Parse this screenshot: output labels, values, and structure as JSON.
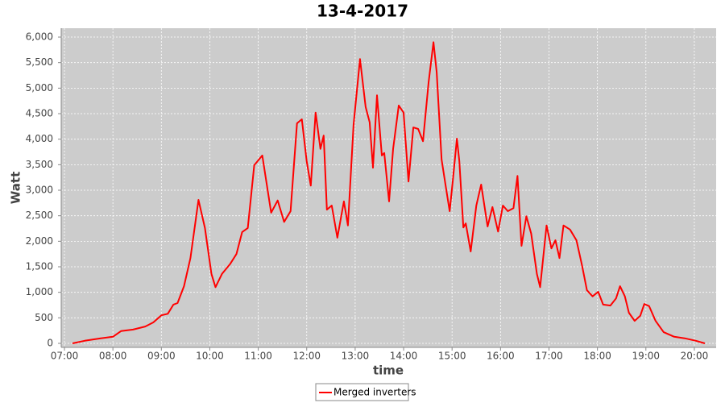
{
  "chart_data": {
    "type": "line",
    "title": "13-4-2017",
    "x_label": "time",
    "y_label": "Watt",
    "x": [
      "07:10",
      "07:25",
      "07:45",
      "08:00",
      "08:10",
      "08:25",
      "08:40",
      "08:50",
      "09:00",
      "09:08",
      "09:15",
      "09:20",
      "09:28",
      "09:36",
      "09:46",
      "09:54",
      "10:02",
      "10:07",
      "10:15",
      "10:25",
      "10:33",
      "10:40",
      "10:47",
      "10:55",
      "11:05",
      "11:10",
      "11:16",
      "11:24",
      "11:32",
      "11:40",
      "11:48",
      "11:54",
      "12:00",
      "12:05",
      "12:11",
      "12:17",
      "12:21",
      "12:25",
      "12:31",
      "12:38",
      "12:46",
      "12:51",
      "12:58",
      "13:06",
      "13:13",
      "13:18",
      "13:22",
      "13:27",
      "13:33",
      "13:36",
      "13:42",
      "13:47",
      "13:54",
      "14:00",
      "14:06",
      "14:12",
      "14:18",
      "14:24",
      "14:31",
      "14:37",
      "14:41",
      "14:47",
      "14:52",
      "14:57",
      "15:01",
      "15:06",
      "15:09",
      "15:14",
      "15:17",
      "15:23",
      "15:30",
      "15:36",
      "15:44",
      "15:50",
      "15:57",
      "16:03",
      "16:09",
      "16:16",
      "16:21",
      "16:26",
      "16:32",
      "16:38",
      "16:45",
      "16:49",
      "16:57",
      "17:03",
      "17:08",
      "17:13",
      "17:18",
      "17:26",
      "17:34",
      "17:41",
      "17:47",
      "17:54",
      "18:01",
      "18:07",
      "18:16",
      "18:23",
      "18:28",
      "18:34",
      "18:39",
      "18:46",
      "18:53",
      "18:58",
      "19:04",
      "19:12",
      "19:22",
      "19:35",
      "19:48",
      "20:02",
      "20:13"
    ],
    "series": [
      {
        "name": "Merged inverters",
        "color": "#ff0000",
        "values": [
          0,
          50,
          100,
          130,
          240,
          270,
          330,
          410,
          550,
          580,
          760,
          790,
          1120,
          1670,
          2810,
          2260,
          1360,
          1100,
          1360,
          1550,
          1750,
          2180,
          2260,
          3490,
          3680,
          3170,
          2560,
          2800,
          2380,
          2590,
          4310,
          4390,
          3570,
          3090,
          4520,
          3810,
          4070,
          2620,
          2700,
          2070,
          2780,
          2310,
          4280,
          5570,
          4630,
          4330,
          3440,
          4860,
          3680,
          3730,
          2780,
          3810,
          4660,
          4520,
          3170,
          4230,
          4200,
          3960,
          5120,
          5900,
          5310,
          3600,
          3090,
          2590,
          3200,
          4010,
          3570,
          2270,
          2350,
          1800,
          2700,
          3110,
          2290,
          2670,
          2190,
          2700,
          2590,
          2650,
          3280,
          1910,
          2490,
          2150,
          1360,
          1100,
          2310,
          1860,
          2020,
          1670,
          2310,
          2230,
          2020,
          1520,
          1040,
          920,
          1010,
          760,
          740,
          880,
          1120,
          920,
          600,
          440,
          540,
          770,
          730,
          440,
          220,
          130,
          100,
          50,
          0
        ]
      }
    ],
    "xlim": [
      "06:56",
      "20:27"
    ],
    "xticks": [
      "07:00",
      "08:00",
      "09:00",
      "10:00",
      "11:00",
      "12:00",
      "13:00",
      "14:00",
      "15:00",
      "16:00",
      "17:00",
      "18:00",
      "19:00",
      "20:00"
    ],
    "ylim": [
      -79,
      6174
    ],
    "yticks": [
      0,
      500,
      {
        "value": 1000,
        "label": "1,000"
      },
      {
        "value": 1500,
        "label": "1,500"
      },
      {
        "value": 2000,
        "label": "2,000"
      },
      {
        "value": 2500,
        "label": "2,500"
      },
      {
        "value": 3000,
        "label": "3,000"
      },
      {
        "value": 3500,
        "label": "3,500"
      },
      {
        "value": 4000,
        "label": "4,000"
      },
      {
        "value": 4500,
        "label": "4,500"
      },
      {
        "value": 5000,
        "label": "5,000"
      },
      {
        "value": 5500,
        "label": "5,500"
      },
      {
        "value": 6000,
        "label": "6,000"
      }
    ],
    "grid": true,
    "legend": "bottom"
  }
}
